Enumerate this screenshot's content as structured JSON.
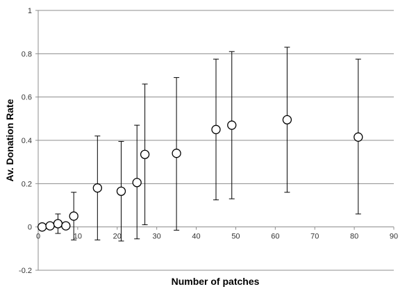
{
  "chart_data": {
    "type": "scatter",
    "title": "",
    "xlabel": "Number of patches",
    "ylabel": "Av. Donation Rate",
    "xlim": [
      0,
      90
    ],
    "ylim": [
      -0.2,
      1
    ],
    "x_ticks": [
      0,
      10,
      20,
      30,
      40,
      50,
      60,
      70,
      80,
      90
    ],
    "y_ticks": [
      -0.2,
      0,
      0.2,
      0.4,
      0.6,
      0.8,
      1
    ],
    "grid": "horizontal",
    "legend": "none",
    "marker": "open-circle",
    "colors": {
      "grid": "#8c8c8c",
      "axis": "#8c8c8c",
      "marker": "#000000",
      "error_bar": "#000000"
    },
    "points": [
      {
        "x": 1,
        "y": 0.0,
        "low": 0.0,
        "high": 0.0
      },
      {
        "x": 3,
        "y": 0.005,
        "low": 0.0,
        "high": 0.01
      },
      {
        "x": 5,
        "y": 0.015,
        "low": -0.03,
        "high": 0.06
      },
      {
        "x": 7,
        "y": 0.005,
        "low": 0.0,
        "high": 0.01
      },
      {
        "x": 9,
        "y": 0.05,
        "low": -0.06,
        "high": 0.16
      },
      {
        "x": 15,
        "y": 0.18,
        "low": -0.06,
        "high": 0.42
      },
      {
        "x": 21,
        "y": 0.165,
        "low": -0.065,
        "high": 0.395
      },
      {
        "x": 25,
        "y": 0.205,
        "low": -0.055,
        "high": 0.47
      },
      {
        "x": 27,
        "y": 0.335,
        "low": 0.01,
        "high": 0.66
      },
      {
        "x": 35,
        "y": 0.34,
        "low": -0.015,
        "high": 0.69
      },
      {
        "x": 45,
        "y": 0.45,
        "low": 0.125,
        "high": 0.775
      },
      {
        "x": 49,
        "y": 0.47,
        "low": 0.13,
        "high": 0.81
      },
      {
        "x": 63,
        "y": 0.495,
        "low": 0.16,
        "high": 0.83
      },
      {
        "x": 81,
        "y": 0.415,
        "low": 0.06,
        "high": 0.775
      }
    ]
  }
}
